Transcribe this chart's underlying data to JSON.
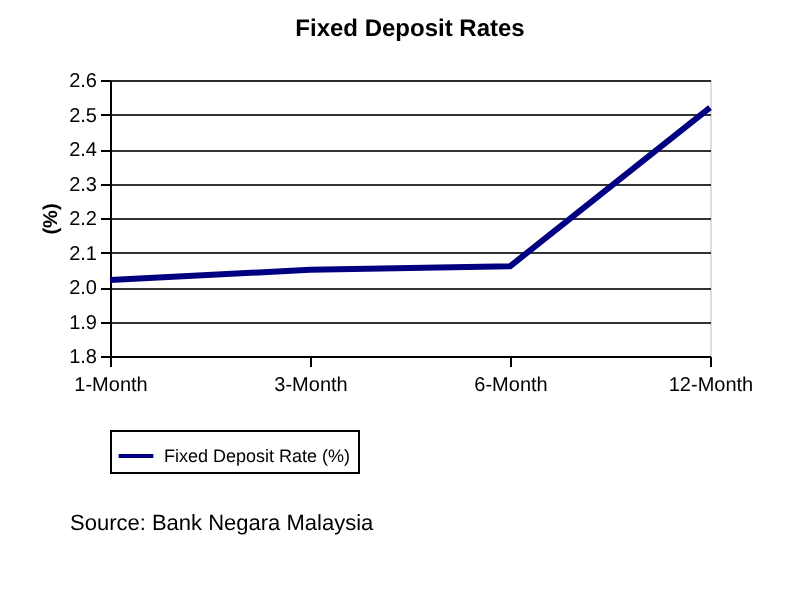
{
  "chart_data": {
    "type": "line",
    "title": "Fixed Deposit Rates",
    "ylabel": "(%)",
    "categories": [
      "1-Month",
      "3-Month",
      "6-Month",
      "12-Month"
    ],
    "series": [
      {
        "name": "Fixed Deposit Rate (%)",
        "color": "#000080",
        "values": [
          2.02,
          2.05,
          2.06,
          2.52
        ]
      }
    ],
    "ylim": [
      1.8,
      2.6
    ],
    "yticks": [
      {
        "value": 1.8,
        "label": "1.8"
      },
      {
        "value": 1.9,
        "label": "1.9"
      },
      {
        "value": 2.0,
        "label": "2.0"
      },
      {
        "value": 2.1,
        "label": "2.1"
      },
      {
        "value": 2.2,
        "label": "2.2"
      },
      {
        "value": 2.3,
        "label": "2.3"
      },
      {
        "value": 2.4,
        "label": "2.4"
      },
      {
        "value": 2.5,
        "label": "2.5"
      },
      {
        "value": 2.6,
        "label": "2.6"
      }
    ],
    "grid": "y",
    "legend": "bottom",
    "marker": "none",
    "line_style": "solid",
    "annotations": [
      "Source: Bank Negara Malaysia"
    ]
  }
}
